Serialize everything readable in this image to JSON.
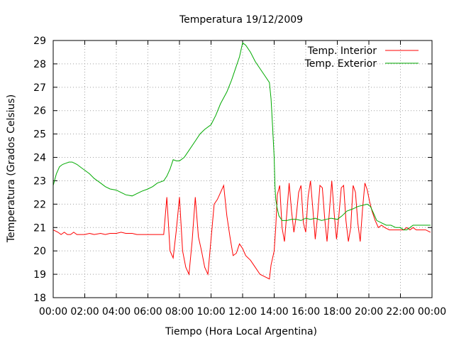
{
  "chart_data": {
    "type": "line",
    "title": "Temperatura 19/12/2009",
    "xlabel": "Tiempo (Hora Local Argentina)",
    "ylabel": "Temperatura (Grados Celsius)",
    "xlim": [
      0,
      24
    ],
    "ylim": [
      18,
      29
    ],
    "x_ticks": [
      {
        "value": 0,
        "label": "00:00"
      },
      {
        "value": 2,
        "label": "02:00"
      },
      {
        "value": 4,
        "label": "04:00"
      },
      {
        "value": 6,
        "label": "06:00"
      },
      {
        "value": 8,
        "label": "08:00"
      },
      {
        "value": 10,
        "label": "10:00"
      },
      {
        "value": 12,
        "label": "12:00"
      },
      {
        "value": 14,
        "label": "14:00"
      },
      {
        "value": 16,
        "label": "16:00"
      },
      {
        "value": 18,
        "label": "18:00"
      },
      {
        "value": 20,
        "label": "20:00"
      },
      {
        "value": 22,
        "label": "22:00"
      },
      {
        "value": 24,
        "label": "00:00"
      }
    ],
    "y_ticks": [
      {
        "value": 18,
        "label": "18"
      },
      {
        "value": 19,
        "label": "19"
      },
      {
        "value": 20,
        "label": "20"
      },
      {
        "value": 21,
        "label": "21"
      },
      {
        "value": 22,
        "label": "22"
      },
      {
        "value": 23,
        "label": "23"
      },
      {
        "value": 24,
        "label": "24"
      },
      {
        "value": 25,
        "label": "25"
      },
      {
        "value": 26,
        "label": "26"
      },
      {
        "value": 27,
        "label": "27"
      },
      {
        "value": 28,
        "label": "28"
      },
      {
        "value": 29,
        "label": "29"
      }
    ],
    "grid": true,
    "legend_position": "top-right",
    "series": [
      {
        "name": "Temp. Interior",
        "color": "#ff0000",
        "x": [
          0.0,
          0.3,
          0.5,
          0.7,
          0.9,
          1.1,
          1.3,
          1.5,
          1.8,
          2.0,
          2.3,
          2.6,
          3.0,
          3.3,
          3.6,
          4.0,
          4.3,
          4.6,
          5.0,
          5.3,
          5.6,
          6.0,
          6.3,
          6.6,
          7.0,
          7.2,
          7.4,
          7.6,
          7.8,
          8.0,
          8.2,
          8.4,
          8.6,
          8.8,
          9.0,
          9.2,
          9.4,
          9.6,
          9.8,
          10.0,
          10.2,
          10.4,
          10.6,
          10.8,
          11.0,
          11.2,
          11.4,
          11.6,
          11.8,
          12.0,
          12.2,
          12.5,
          12.8,
          13.1,
          13.4,
          13.7,
          13.8,
          14.0,
          14.1,
          14.2,
          14.35,
          14.5,
          14.65,
          14.8,
          14.95,
          15.1,
          15.25,
          15.4,
          15.55,
          15.7,
          15.85,
          16.0,
          16.15,
          16.3,
          16.45,
          16.6,
          16.75,
          16.9,
          17.05,
          17.2,
          17.35,
          17.5,
          17.65,
          17.8,
          17.95,
          18.1,
          18.25,
          18.4,
          18.55,
          18.7,
          18.85,
          19.0,
          19.15,
          19.3,
          19.45,
          19.6,
          19.75,
          19.9,
          20.05,
          20.2,
          20.4,
          20.6,
          20.8,
          21.0,
          21.3,
          21.6,
          22.0,
          22.2,
          22.4,
          22.6,
          22.8,
          23.0,
          23.3,
          23.6,
          23.9
        ],
        "values": [
          20.9,
          20.8,
          20.7,
          20.8,
          20.7,
          20.7,
          20.8,
          20.7,
          20.7,
          20.7,
          20.75,
          20.7,
          20.75,
          20.7,
          20.75,
          20.75,
          20.8,
          20.75,
          20.75,
          20.7,
          20.7,
          20.7,
          20.7,
          20.7,
          20.7,
          22.3,
          20.0,
          19.7,
          20.9,
          22.3,
          20.0,
          19.3,
          19.0,
          20.4,
          22.3,
          20.6,
          20.0,
          19.3,
          19.0,
          20.5,
          22.0,
          22.2,
          22.5,
          22.8,
          21.5,
          20.6,
          19.8,
          19.9,
          20.3,
          20.1,
          19.8,
          19.6,
          19.3,
          19.0,
          18.9,
          18.8,
          19.4,
          20.0,
          21.0,
          22.4,
          22.8,
          21.0,
          20.4,
          21.6,
          22.9,
          21.7,
          20.8,
          21.5,
          22.5,
          22.8,
          21.2,
          20.8,
          22.3,
          23.0,
          21.8,
          20.5,
          21.5,
          22.8,
          22.7,
          21.4,
          20.4,
          21.7,
          23.0,
          21.6,
          20.5,
          21.5,
          22.7,
          22.8,
          21.3,
          20.4,
          21.0,
          22.8,
          22.5,
          21.2,
          20.4,
          21.8,
          22.9,
          22.6,
          22.1,
          21.7,
          21.3,
          21.0,
          21.1,
          21.0,
          20.9,
          20.9,
          20.9,
          20.9,
          21.0,
          20.9,
          21.0,
          20.9,
          20.9,
          20.9,
          20.8
        ]
      },
      {
        "name": "Temp. Exterior",
        "color": "#00aa00",
        "x": [
          0.0,
          0.2,
          0.4,
          0.6,
          0.8,
          1.0,
          1.2,
          1.5,
          1.8,
          2.0,
          2.3,
          2.6,
          3.0,
          3.3,
          3.6,
          4.0,
          4.3,
          4.6,
          5.0,
          5.3,
          5.6,
          6.0,
          6.3,
          6.6,
          7.0,
          7.2,
          7.4,
          7.6,
          7.8,
          8.0,
          8.3,
          8.6,
          9.0,
          9.3,
          9.6,
          10.0,
          10.3,
          10.6,
          11.0,
          11.3,
          11.6,
          11.8,
          12.0,
          12.2,
          12.5,
          12.8,
          13.1,
          13.4,
          13.7,
          13.8,
          13.9,
          14.0,
          14.05,
          14.1,
          14.2,
          14.3,
          14.5,
          14.8,
          15.1,
          15.4,
          15.7,
          16.0,
          16.3,
          16.6,
          17.0,
          17.3,
          17.6,
          18.0,
          18.3,
          18.6,
          19.0,
          19.3,
          19.6,
          19.9,
          20.1,
          20.3,
          20.5,
          20.8,
          21.1,
          21.4,
          21.7,
          22.0,
          22.2,
          22.4,
          22.6,
          22.8,
          23.0,
          23.3,
          23.6,
          23.9
        ],
        "values": [
          22.8,
          23.3,
          23.6,
          23.7,
          23.75,
          23.8,
          23.8,
          23.7,
          23.55,
          23.45,
          23.3,
          23.1,
          22.9,
          22.75,
          22.65,
          22.6,
          22.5,
          22.4,
          22.35,
          22.45,
          22.55,
          22.65,
          22.75,
          22.9,
          23.0,
          23.2,
          23.5,
          23.9,
          23.85,
          23.85,
          24.0,
          24.3,
          24.7,
          25.0,
          25.2,
          25.4,
          25.8,
          26.3,
          26.8,
          27.3,
          27.9,
          28.3,
          28.9,
          28.8,
          28.5,
          28.1,
          27.8,
          27.5,
          27.2,
          26.5,
          25.3,
          24.0,
          22.8,
          22.2,
          21.8,
          21.5,
          21.3,
          21.3,
          21.35,
          21.35,
          21.3,
          21.4,
          21.35,
          21.4,
          21.3,
          21.35,
          21.4,
          21.35,
          21.5,
          21.7,
          21.8,
          21.9,
          21.95,
          22.0,
          21.9,
          21.6,
          21.3,
          21.2,
          21.1,
          21.1,
          21.0,
          21.0,
          20.9,
          20.9,
          21.0,
          21.1,
          21.1,
          21.1,
          21.1,
          21.1
        ]
      }
    ]
  }
}
